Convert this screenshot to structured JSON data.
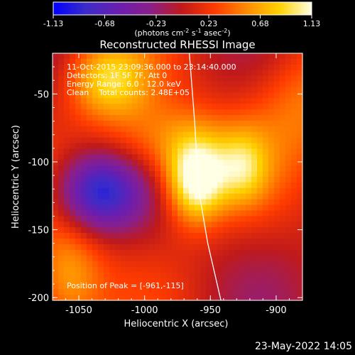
{
  "colorbar": {
    "ticks": [
      "-1.13",
      "-0.68",
      "-0.23",
      "0.23",
      "0.68",
      "1.13"
    ],
    "units_prefix": "(photons cm",
    "units_exp1": "-2",
    "units_mid": " s",
    "units_exp2": "-1",
    "units_mid2": " asec",
    "units_exp3": "-2",
    "units_suffix": ")",
    "range": [
      -1.13,
      1.13
    ],
    "colors": [
      "#0000ff",
      "#3b2cc8",
      "#6a1eb0",
      "#8a1f8a",
      "#c01a1a",
      "#ff3b00",
      "#ff8c00",
      "#ffd200",
      "#ffffe6"
    ]
  },
  "chart_data": {
    "type": "heatmap",
    "title": "Reconstructed RHESSI Image",
    "xlabel": "Heliocentric X (arcsec)",
    "ylabel": "Heliocentric Y (arcsec)",
    "xlim": [
      -1070,
      -880
    ],
    "ylim": [
      -202,
      -20
    ],
    "x_ticks": [
      -1050,
      -1000,
      -950,
      -900
    ],
    "y_ticks": [
      -50,
      -100,
      -150,
      -200
    ],
    "info_lines": [
      "11-Oct-2015 23:09:36.000 to 23:14:40.000",
      "Detectors: 1F 5F 7F, Att 0",
      "Energy Range: 6.0 - 12.0 keV",
      "Clean    Total counts: 2.48E+05"
    ],
    "peak_label": "Position of Peak = [-961,-115]",
    "peak": {
      "x": -961,
      "y": -115
    },
    "limb_curve": [
      {
        "x": -966,
        "y": -20
      },
      {
        "x": -962,
        "y": -70
      },
      {
        "x": -959,
        "y": -120
      },
      {
        "x": -952,
        "y": -160
      },
      {
        "x": -942,
        "y": -202
      }
    ],
    "sources": [
      {
        "x": -961,
        "y": -115,
        "sx": 16,
        "sy": 22,
        "amp": 1.13
      },
      {
        "x": -1028,
        "y": -40,
        "sx": 22,
        "sy": 20,
        "amp": 0.75
      },
      {
        "x": -985,
        "y": -85,
        "sx": 35,
        "sy": 22,
        "amp": 0.55
      },
      {
        "x": -925,
        "y": -105,
        "sx": 14,
        "sy": 20,
        "amp": 0.6
      },
      {
        "x": -1060,
        "y": -185,
        "sx": 20,
        "sy": 30,
        "amp": 0.65
      },
      {
        "x": -1035,
        "y": -122,
        "sx": 22,
        "sy": 20,
        "amp": -0.95
      },
      {
        "x": -880,
        "y": -55,
        "sx": 30,
        "sy": 35,
        "amp": 0.45
      }
    ]
  },
  "footer": {
    "date": "23-May-2022 14:05"
  }
}
